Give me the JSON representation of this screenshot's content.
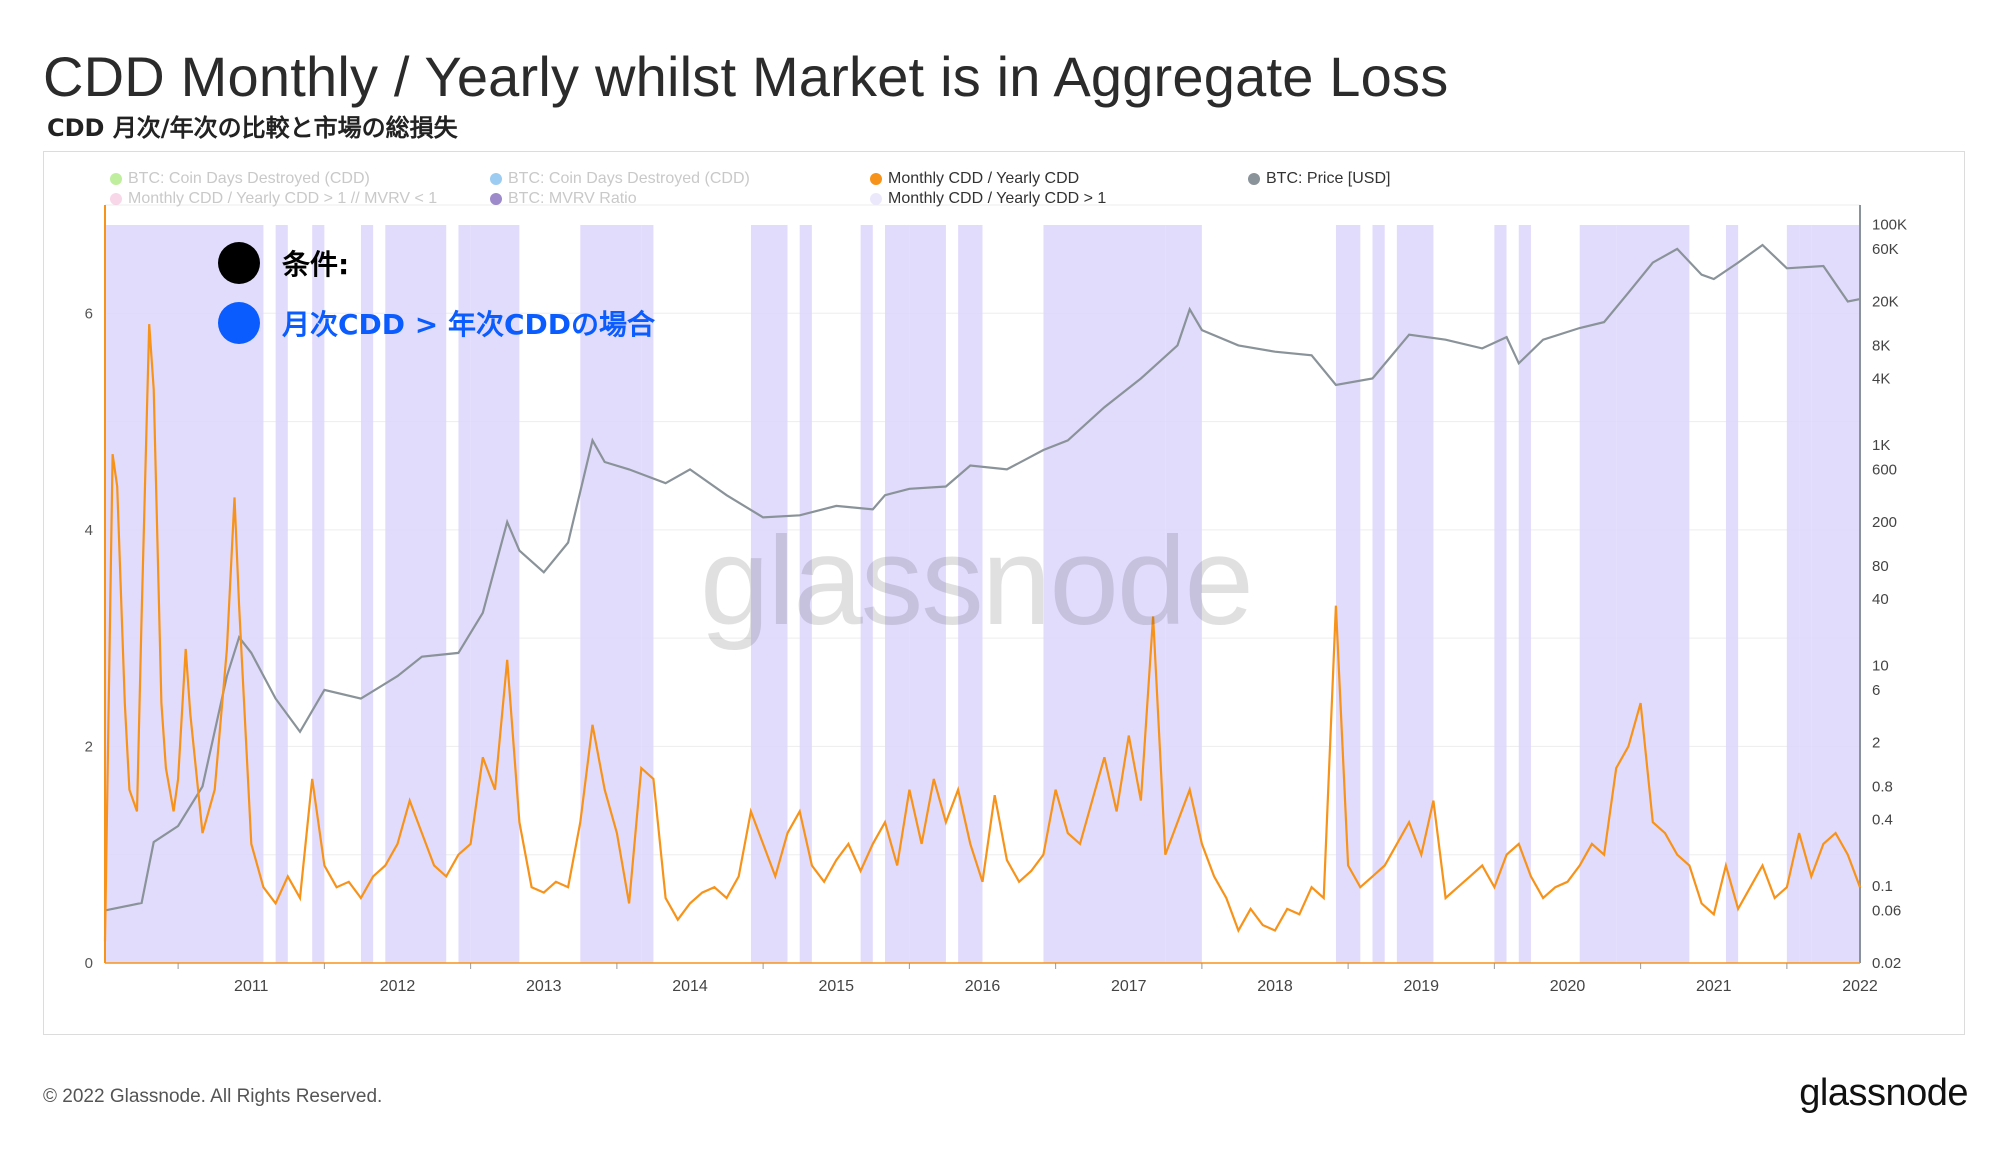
{
  "title": "CDD Monthly / Yearly whilst Market is in Aggregate Loss",
  "subtitle": "CDD 月次/年次の比較と市場の総損失",
  "legend": [
    {
      "label": "BTC: Coin Days Destroyed (CDD)",
      "color": "#8be04e",
      "state": "muted"
    },
    {
      "label": "BTC: Coin Days Destroyed (CDD)",
      "color": "#4aa3e8",
      "state": "muted"
    },
    {
      "label": "Monthly CDD / Yearly CDD",
      "color": "#f7931a",
      "state": "active"
    },
    {
      "label": "BTC: Price [USD]",
      "color": "#8a9399",
      "state": "active"
    },
    {
      "label": "Monthly CDD / Yearly CDD > 1 // MVRV < 1",
      "color": "#f3b6d6",
      "state": "muted"
    },
    {
      "label": "BTC: MVRV Ratio",
      "color": "#4a2aa0",
      "state": "muted"
    },
    {
      "label": "Monthly CDD / Yearly CDD > 1",
      "color": "#ece8fb",
      "state": "active"
    }
  ],
  "annotations": [
    {
      "text": "条件:",
      "bullet_color": "#000000",
      "text_color": "#000000"
    },
    {
      "text": "月次CDD > 年次CDDの場合",
      "bullet_color": "#0a5cff",
      "text_color": "#0a5cff"
    }
  ],
  "watermark": "glassnode",
  "footer": {
    "copyright": "© 2022 Glassnode. All Rights Reserved.",
    "logo": "glassnode"
  },
  "colors": {
    "orange": "#f7931a",
    "price": "#8a9399",
    "shade": "#ddd6fb",
    "grid": "#ededed"
  },
  "chart_data": {
    "type": "line",
    "x_range": [
      "2010-07",
      "2022-07"
    ],
    "x_ticks": [
      "2011",
      "2012",
      "2013",
      "2014",
      "2015",
      "2016",
      "2017",
      "2018",
      "2019",
      "2020",
      "2021",
      "2022"
    ],
    "y_left": {
      "label": "",
      "ticks": [
        "0",
        "2",
        "4",
        "6"
      ],
      "range": [
        0,
        7
      ]
    },
    "y_right": {
      "label": "",
      "scale": "log",
      "ticks": [
        "100K",
        "60K",
        "20K",
        "8K",
        "4K",
        "1K",
        "600",
        "200",
        "80",
        "40",
        "10",
        "6",
        "2",
        "0.8",
        "0.4",
        "0.1",
        "0.06",
        "0.02"
      ],
      "range": [
        0.02,
        150000
      ]
    },
    "series": [
      {
        "name": "Monthly CDD / Yearly CDD",
        "axis": "left",
        "points": [
          [
            "2010-07",
            0.2
          ],
          [
            "2010-07-20",
            4.7
          ],
          [
            "2010-08",
            4.4
          ],
          [
            "2010-08-20",
            2.4
          ],
          [
            "2010-09",
            1.6
          ],
          [
            "2010-09-20",
            1.4
          ],
          [
            "2010-10",
            3.2
          ],
          [
            "2010-10-20",
            5.9
          ],
          [
            "2010-11",
            5.3
          ],
          [
            "2010-11-20",
            2.4
          ],
          [
            "2010-12",
            1.8
          ],
          [
            "2010-12-20",
            1.4
          ],
          [
            "2011-01",
            1.7
          ],
          [
            "2011-01-20",
            2.9
          ],
          [
            "2011-02",
            2.3
          ],
          [
            "2011-03",
            1.2
          ],
          [
            "2011-04",
            1.6
          ],
          [
            "2011-05",
            2.9
          ],
          [
            "2011-05-20",
            4.3
          ],
          [
            "2011-06",
            3.3
          ],
          [
            "2011-07",
            1.1
          ],
          [
            "2011-08",
            0.7
          ],
          [
            "2011-09",
            0.55
          ],
          [
            "2011-10",
            0.8
          ],
          [
            "2011-11",
            0.6
          ],
          [
            "2011-12",
            1.7
          ],
          [
            "2012-01",
            0.9
          ],
          [
            "2012-02",
            0.7
          ],
          [
            "2012-03",
            0.75
          ],
          [
            "2012-04",
            0.6
          ],
          [
            "2012-05",
            0.8
          ],
          [
            "2012-06",
            0.9
          ],
          [
            "2012-07",
            1.1
          ],
          [
            "2012-08",
            1.5
          ],
          [
            "2012-09",
            1.2
          ],
          [
            "2012-10",
            0.9
          ],
          [
            "2012-11",
            0.8
          ],
          [
            "2012-12",
            1.0
          ],
          [
            "2013-01",
            1.1
          ],
          [
            "2013-02",
            1.9
          ],
          [
            "2013-03",
            1.6
          ],
          [
            "2013-04",
            2.8
          ],
          [
            "2013-05",
            1.3
          ],
          [
            "2013-06",
            0.7
          ],
          [
            "2013-07",
            0.65
          ],
          [
            "2013-08",
            0.75
          ],
          [
            "2013-09",
            0.7
          ],
          [
            "2013-10",
            1.3
          ],
          [
            "2013-11",
            2.2
          ],
          [
            "2013-12",
            1.6
          ],
          [
            "2014-01",
            1.2
          ],
          [
            "2014-02",
            0.55
          ],
          [
            "2014-03",
            1.8
          ],
          [
            "2014-04",
            1.7
          ],
          [
            "2014-05",
            0.6
          ],
          [
            "2014-06",
            0.4
          ],
          [
            "2014-07",
            0.55
          ],
          [
            "2014-08",
            0.65
          ],
          [
            "2014-09",
            0.7
          ],
          [
            "2014-10",
            0.6
          ],
          [
            "2014-11",
            0.8
          ],
          [
            "2014-12",
            1.4
          ],
          [
            "2015-01",
            1.1
          ],
          [
            "2015-02",
            0.8
          ],
          [
            "2015-03",
            1.2
          ],
          [
            "2015-04",
            1.4
          ],
          [
            "2015-05",
            0.9
          ],
          [
            "2015-06",
            0.75
          ],
          [
            "2015-07",
            0.95
          ],
          [
            "2015-08",
            1.1
          ],
          [
            "2015-09",
            0.85
          ],
          [
            "2015-10",
            1.1
          ],
          [
            "2015-11",
            1.3
          ],
          [
            "2015-12",
            0.9
          ],
          [
            "2016-01",
            1.6
          ],
          [
            "2016-02",
            1.1
          ],
          [
            "2016-03",
            1.7
          ],
          [
            "2016-04",
            1.3
          ],
          [
            "2016-05",
            1.6
          ],
          [
            "2016-06",
            1.1
          ],
          [
            "2016-07",
            0.75
          ],
          [
            "2016-08",
            1.55
          ],
          [
            "2016-09",
            0.95
          ],
          [
            "2016-10",
            0.75
          ],
          [
            "2016-11",
            0.85
          ],
          [
            "2016-12",
            1.0
          ],
          [
            "2017-01",
            1.6
          ],
          [
            "2017-02",
            1.2
          ],
          [
            "2017-03",
            1.1
          ],
          [
            "2017-04",
            1.5
          ],
          [
            "2017-05",
            1.9
          ],
          [
            "2017-06",
            1.4
          ],
          [
            "2017-07",
            2.1
          ],
          [
            "2017-08",
            1.5
          ],
          [
            "2017-09",
            3.2
          ],
          [
            "2017-10",
            1.0
          ],
          [
            "2017-11",
            1.3
          ],
          [
            "2017-12",
            1.6
          ],
          [
            "2018-01",
            1.1
          ],
          [
            "2018-02",
            0.8
          ],
          [
            "2018-03",
            0.6
          ],
          [
            "2018-04",
            0.3
          ],
          [
            "2018-05",
            0.5
          ],
          [
            "2018-06",
            0.35
          ],
          [
            "2018-07",
            0.3
          ],
          [
            "2018-08",
            0.5
          ],
          [
            "2018-09",
            0.45
          ],
          [
            "2018-10",
            0.7
          ],
          [
            "2018-11",
            0.6
          ],
          [
            "2018-12",
            3.3
          ],
          [
            "2019-01",
            0.9
          ],
          [
            "2019-02",
            0.7
          ],
          [
            "2019-03",
            0.8
          ],
          [
            "2019-04",
            0.9
          ],
          [
            "2019-05",
            1.1
          ],
          [
            "2019-06",
            1.3
          ],
          [
            "2019-07",
            1.0
          ],
          [
            "2019-08",
            1.5
          ],
          [
            "2019-09",
            0.6
          ],
          [
            "2019-10",
            0.7
          ],
          [
            "2019-11",
            0.8
          ],
          [
            "2019-12",
            0.9
          ],
          [
            "2020-01",
            0.7
          ],
          [
            "2020-02",
            1.0
          ],
          [
            "2020-03",
            1.1
          ],
          [
            "2020-04",
            0.8
          ],
          [
            "2020-05",
            0.6
          ],
          [
            "2020-06",
            0.7
          ],
          [
            "2020-07",
            0.75
          ],
          [
            "2020-08",
            0.9
          ],
          [
            "2020-09",
            1.1
          ],
          [
            "2020-10",
            1.0
          ],
          [
            "2020-11",
            1.8
          ],
          [
            "2020-12",
            2.0
          ],
          [
            "2021-01",
            2.4
          ],
          [
            "2021-02",
            1.3
          ],
          [
            "2021-03",
            1.2
          ],
          [
            "2021-04",
            1.0
          ],
          [
            "2021-05",
            0.9
          ],
          [
            "2021-06",
            0.55
          ],
          [
            "2021-07",
            0.45
          ],
          [
            "2021-08",
            0.9
          ],
          [
            "2021-09",
            0.5
          ],
          [
            "2021-10",
            0.7
          ],
          [
            "2021-11",
            0.9
          ],
          [
            "2021-12",
            0.6
          ],
          [
            "2022-01",
            0.7
          ],
          [
            "2022-02",
            1.2
          ],
          [
            "2022-03",
            0.8
          ],
          [
            "2022-04",
            1.1
          ],
          [
            "2022-05",
            1.2
          ],
          [
            "2022-06",
            1.0
          ],
          [
            "2022-07",
            0.7
          ]
        ]
      },
      {
        "name": "BTC: Price [USD]",
        "axis": "right",
        "points": [
          [
            "2010-07",
            0.06
          ],
          [
            "2010-10",
            0.07
          ],
          [
            "2010-11",
            0.25
          ],
          [
            "2011-01",
            0.35
          ],
          [
            "2011-03",
            0.8
          ],
          [
            "2011-05",
            8
          ],
          [
            "2011-06",
            18
          ],
          [
            "2011-07",
            13
          ],
          [
            "2011-09",
            5
          ],
          [
            "2011-11",
            2.5
          ],
          [
            "2012-01",
            6
          ],
          [
            "2012-04",
            5
          ],
          [
            "2012-07",
            8
          ],
          [
            "2012-09",
            12
          ],
          [
            "2012-12",
            13
          ],
          [
            "2013-02",
            30
          ],
          [
            "2013-04",
            200
          ],
          [
            "2013-05",
            110
          ],
          [
            "2013-07",
            70
          ],
          [
            "2013-09",
            130
          ],
          [
            "2013-11",
            1100
          ],
          [
            "2013-12",
            700
          ],
          [
            "2014-02",
            600
          ],
          [
            "2014-05",
            450
          ],
          [
            "2014-07",
            600
          ],
          [
            "2014-10",
            350
          ],
          [
            "2015-01",
            220
          ],
          [
            "2015-04",
            230
          ],
          [
            "2015-07",
            280
          ],
          [
            "2015-10",
            260
          ],
          [
            "2015-11",
            350
          ],
          [
            "2016-01",
            400
          ],
          [
            "2016-04",
            420
          ],
          [
            "2016-06",
            650
          ],
          [
            "2016-09",
            600
          ],
          [
            "2016-12",
            900
          ],
          [
            "2017-02",
            1100
          ],
          [
            "2017-05",
            2200
          ],
          [
            "2017-08",
            4000
          ],
          [
            "2017-11",
            8000
          ],
          [
            "2017-12",
            17000
          ],
          [
            "2018-01",
            11000
          ],
          [
            "2018-04",
            8000
          ],
          [
            "2018-07",
            7000
          ],
          [
            "2018-10",
            6500
          ],
          [
            "2018-12",
            3500
          ],
          [
            "2019-03",
            4000
          ],
          [
            "2019-06",
            10000
          ],
          [
            "2019-09",
            9000
          ],
          [
            "2019-12",
            7500
          ],
          [
            "2020-02",
            9500
          ],
          [
            "2020-03",
            5500
          ],
          [
            "2020-05",
            9000
          ],
          [
            "2020-08",
            11500
          ],
          [
            "2020-10",
            13000
          ],
          [
            "2020-12",
            24000
          ],
          [
            "2021-02",
            45000
          ],
          [
            "2021-04",
            60000
          ],
          [
            "2021-06",
            35000
          ],
          [
            "2021-07",
            32000
          ],
          [
            "2021-09",
            45000
          ],
          [
            "2021-11",
            65000
          ],
          [
            "2022-01",
            40000
          ],
          [
            "2022-04",
            42000
          ],
          [
            "2022-06",
            20000
          ],
          [
            "2022-07",
            21000
          ]
        ]
      }
    ],
    "highlight_ranges": [
      [
        "2010-07",
        "2011-08"
      ],
      [
        "2011-09",
        "2011-10"
      ],
      [
        "2011-12",
        "2012-01"
      ],
      [
        "2012-04",
        "2012-05"
      ],
      [
        "2012-06",
        "2012-07"
      ],
      [
        "2012-07",
        "2012-11"
      ],
      [
        "2012-12",
        "2013-01"
      ],
      [
        "2013-01",
        "2013-05"
      ],
      [
        "2013-10",
        "2014-03"
      ],
      [
        "2014-03",
        "2014-04"
      ],
      [
        "2014-12",
        "2015-03"
      ],
      [
        "2015-04",
        "2015-05"
      ],
      [
        "2015-09",
        "2015-10"
      ],
      [
        "2015-11",
        "2016-01"
      ],
      [
        "2016-01",
        "2016-04"
      ],
      [
        "2016-05",
        "2016-07"
      ],
      [
        "2016-12",
        "2017-10"
      ],
      [
        "2017-10",
        "2018-01"
      ],
      [
        "2018-12",
        "2019-02"
      ],
      [
        "2019-03",
        "2019-04"
      ],
      [
        "2019-05",
        "2019-08"
      ],
      [
        "2020-01",
        "2020-02"
      ],
      [
        "2020-03",
        "2020-04"
      ],
      [
        "2020-08",
        "2020-11"
      ],
      [
        "2020-11",
        "2021-05"
      ],
      [
        "2021-08",
        "2021-09"
      ],
      [
        "2022-01",
        "2022-02"
      ],
      [
        "2022-02",
        "2022-03"
      ],
      [
        "2022-03",
        "2022-07"
      ]
    ]
  }
}
